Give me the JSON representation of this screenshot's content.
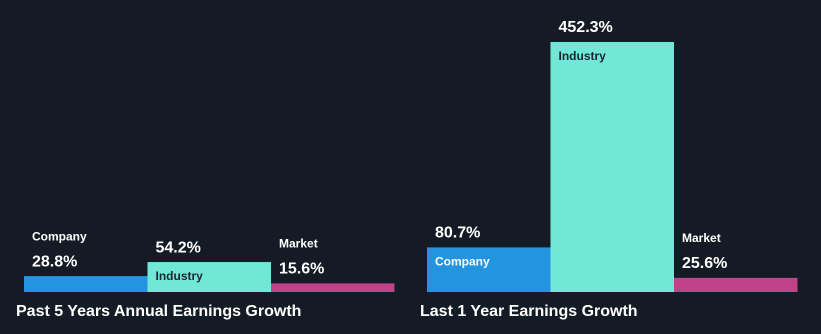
{
  "chart_data": [
    {
      "type": "bar",
      "title": "Past 5 Years Annual Earnings Growth",
      "categories": [
        "Company",
        "Industry",
        "Market"
      ],
      "values": [
        28.8,
        54.2,
        15.6
      ],
      "value_labels": [
        "28.8%",
        "54.2%",
        "15.6%"
      ],
      "colors": [
        "#2394df",
        "#71e8d7",
        "#c0438a"
      ]
    },
    {
      "type": "bar",
      "title": "Last 1 Year Earnings Growth",
      "categories": [
        "Company",
        "Industry",
        "Market"
      ],
      "values": [
        80.7,
        452.3,
        25.6
      ],
      "value_labels": [
        "80.7%",
        "452.3%",
        "25.6%"
      ],
      "colors": [
        "#2394df",
        "#71e8d7",
        "#c0438a"
      ]
    }
  ]
}
